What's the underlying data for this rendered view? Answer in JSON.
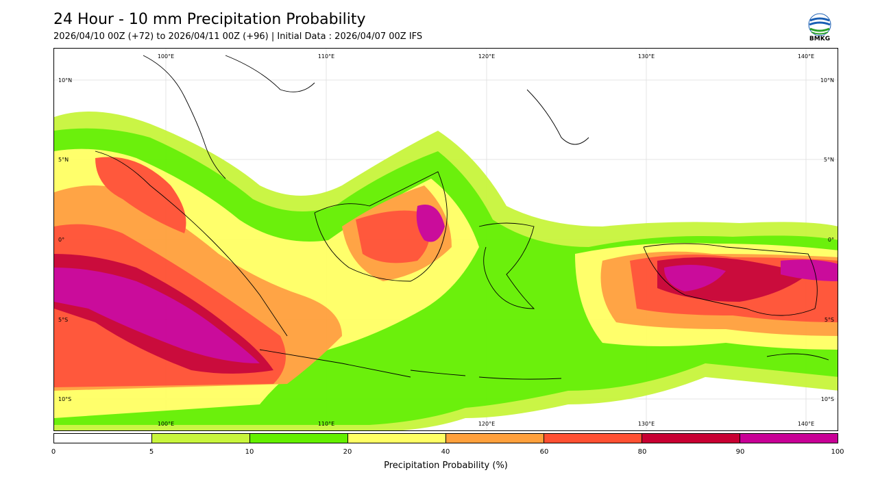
{
  "title": "24 Hour - 10 mm Precipitation Probability",
  "subtitle": "2026/04/10 00Z (+72) to 2026/04/11 00Z (+96) | Initial Data : 2026/04/07 00Z IFS",
  "logo": {
    "text": "BMKG",
    "icon": "bmkg-logo-icon"
  },
  "map": {
    "region": "Indonesia",
    "lon_labels_top": [
      "100°E",
      "110°E",
      "120°E",
      "130°E",
      "140°E"
    ],
    "lon_labels_bottom": [
      "100°E",
      "110°E",
      "120°E",
      "130°E",
      "140°E"
    ],
    "lat_labels_left": [
      "10°N",
      "5°N",
      "0°",
      "5°S",
      "10°S"
    ],
    "lat_labels_right": [
      "10°N",
      "5°N",
      "0°",
      "5°S",
      "10°S"
    ]
  },
  "colorbar": {
    "label": "Precipitation Probability (%)",
    "ticks": [
      "0",
      "5",
      "10",
      "20",
      "40",
      "60",
      "80",
      "90",
      "100"
    ],
    "colors": [
      "#ffffff",
      "#c8f53c",
      "#64f000",
      "#ffff64",
      "#ffa03c",
      "#ff5032",
      "#c80032",
      "#c80096"
    ]
  }
}
